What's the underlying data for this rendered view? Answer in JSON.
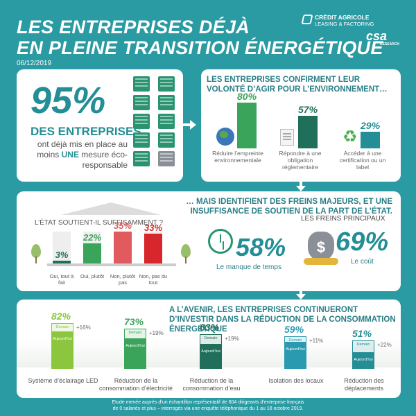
{
  "header": {
    "title_line1": "LES ENTREPRISES DÉJÀ",
    "title_line2": "EN PLEINE TRANSITION ÉNERGÉTIQUE",
    "date": "06/12/2019",
    "brand_line1": "CRÉDIT AGRICOLE",
    "brand_line2": "LEASING & FACTORING",
    "csa": "csa",
    "csa_sub": "RESEARCH"
  },
  "stat95": {
    "value": "95%",
    "headline": "DES ENTREPRISES",
    "desc_a": "ont déjà mis en place au moins",
    "desc_em": "UNE",
    "desc_b": "mesure éco-responsable"
  },
  "actions": {
    "title": "LES ENTREPRISES CONFIRMENT LEUR VOLONTÉ D’AGIR POUR L’ENVIRONNEMENT…",
    "items": [
      {
        "value": "80%",
        "percent": 80,
        "label": "Réduire l’empreinte environnementale",
        "color": "#3aa45a"
      },
      {
        "value": "57%",
        "percent": 57,
        "label": "Répondre à une obligation réglementaire",
        "color": "#1f6f5a"
      },
      {
        "value": "29%",
        "percent": 29,
        "label": "Accéder à une certification ou un label",
        "color": "#238e95"
      }
    ]
  },
  "freins": {
    "title": "… MAIS IDENTIFIENT DES FREINS MAJEURS, ET UNE INSUFFISANCE DE SOUTIEN DE LA PART DE L’ÉTAT.",
    "question": "L’ÉTAT SOUTIENT-IL SUFFISAMMENT ?",
    "answers": [
      {
        "value": "3%",
        "percent": 3,
        "label": "Oui, tout à fait",
        "color": "#1f6f5a"
      },
      {
        "value": "22%",
        "percent": 22,
        "label": "Oui, plutôt",
        "color": "#3aa45a"
      },
      {
        "value": "35%",
        "percent": 35,
        "label": "Non, plutôt pas",
        "color": "#e05a5e"
      },
      {
        "value": "33%",
        "percent": 33,
        "label": "Non, pas du tout",
        "color": "#d7262c"
      }
    ],
    "principal_title": "LES FREINS PRINCIPAUX",
    "temps_value": "58%",
    "temps_label": "Le manque de temps",
    "cout_value": "69%",
    "cout_label": "Le coût",
    "currency": "$"
  },
  "avenir": {
    "title": "A L’AVENIR, LES ENTREPRISES CONTINUERONT D’INVESTIR DANS LA RÉDUCTION DE LA CONSOMMATION ÉNERGÉTIQUE",
    "demain_label": "Demain",
    "auj_label": "Aujourd’hui",
    "items": [
      {
        "value": "82%",
        "demain": 82,
        "increase": "+16%",
        "today": 66,
        "label": "Système d’éclairage LED",
        "color": "#8cc63f"
      },
      {
        "value": "73%",
        "demain": 73,
        "increase": "+19%",
        "today": 54,
        "label": "Réduction de la consommation d’électricité",
        "color": "#3aa45a"
      },
      {
        "value": "63%",
        "demain": 63,
        "increase": "+19%",
        "today": 44,
        "label": "Réduction de la consommation d’eau",
        "color": "#1f6f5a"
      },
      {
        "value": "59%",
        "demain": 59,
        "increase": "+11%",
        "today": 48,
        "label": "Isolation des locaux",
        "color": "#2a9ab0"
      },
      {
        "value": "51%",
        "demain": 51,
        "increase": "+22%",
        "today": 29,
        "label": "Réduction des déplacements",
        "color": "#238e95"
      }
    ]
  },
  "footer": {
    "line1": "Etude menée auprès d’un échantillon représentatif de 604 dirigeants d’entreprise français",
    "line2": "de 0 salariés et plus – interrogés via une enquête téléphonique du 1 au 18 octobre 2019."
  }
}
